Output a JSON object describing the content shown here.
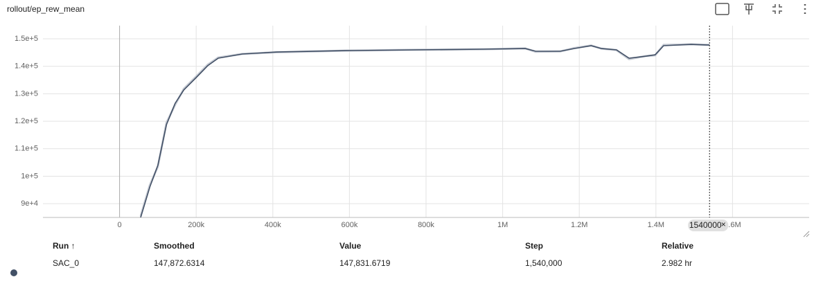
{
  "chart_data": {
    "type": "line",
    "title": "rollout/ep_rew_mean",
    "x": [
      55000,
      79000,
      100000,
      122500,
      145000,
      167600,
      200000,
      230000,
      257700,
      320000,
      410800,
      591000,
      771000,
      951000,
      1059000,
      1086000,
      1150000,
      1186000,
      1231000,
      1258000,
      1297000,
      1330000,
      1375000,
      1398000,
      1420000,
      1492000,
      1540000
    ],
    "series": [
      {
        "color": "#c5cad3",
        "values": [
          85500,
          96800,
          103500,
          119500,
          126000,
          131800,
          136300,
          140600,
          143200,
          144500,
          145100,
          145700,
          146000,
          146200,
          146500,
          145300,
          145400,
          146600,
          147600,
          146400,
          145900,
          142600,
          143800,
          144000,
          147800,
          148000,
          147800
        ]
      },
      {
        "color": "#425066",
        "values": [
          85000,
          96100,
          104000,
          118800,
          126500,
          131400,
          135900,
          140200,
          142950,
          144460,
          145200,
          145700,
          145970,
          146220,
          146470,
          145470,
          145470,
          146470,
          147480,
          146470,
          145970,
          142950,
          143700,
          144200,
          147480,
          147980,
          147730
        ]
      }
    ],
    "xlim": [
      -200000,
      1800000
    ],
    "xticks": [
      0,
      {
        "value": 200000,
        "label": "200k"
      },
      {
        "value": 400000,
        "label": "400k"
      },
      {
        "value": 600000,
        "label": "600k"
      },
      {
        "value": 800000,
        "label": "800k"
      },
      {
        "value": 1000000,
        "label": "1M"
      },
      {
        "value": 1200000,
        "label": "1.2M"
      },
      {
        "value": 1400000,
        "label": "1.4M"
      },
      {
        "value": 1600000,
        "label": "1.6M"
      }
    ],
    "ylim": [
      85000,
      154800
    ],
    "yticks": [
      {
        "value": 90000,
        "label": "9e+4"
      },
      {
        "value": 100000,
        "label": "1e+5"
      },
      {
        "value": 110000,
        "label": "1.1e+5"
      },
      {
        "value": 120000,
        "label": "1.2e+5"
      },
      {
        "value": 130000,
        "label": "1.3e+5"
      },
      {
        "value": 140000,
        "label": "1.4e+5"
      },
      {
        "value": 150000,
        "label": "1.5e+5"
      }
    ],
    "grid": true,
    "cursor_step": 1540000
  },
  "table": {
    "headers": [
      "Run ↑",
      "Smoothed",
      "Value",
      "Step",
      "Relative"
    ],
    "rows": [
      [
        "SAC_0",
        "147,872.6314",
        "147,831.6719",
        "1,540,000",
        "2.982 hr"
      ]
    ]
  }
}
